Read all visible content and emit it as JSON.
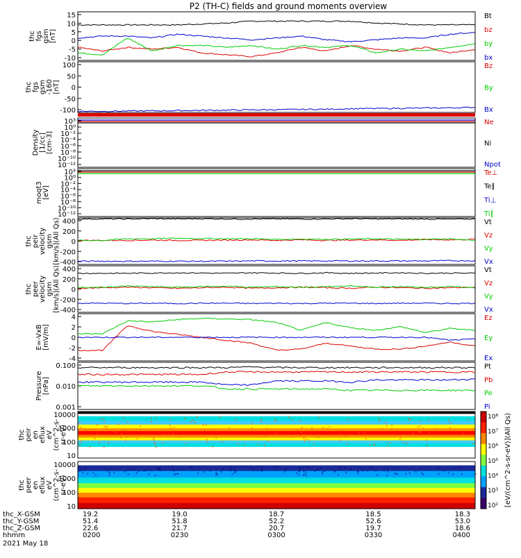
{
  "title": "P2 (TH-C) fields and ground moments overview",
  "colors": {
    "black": "#000000",
    "red": "#dd0000",
    "green": "#00cc00",
    "blue": "#0000cc"
  },
  "chart_data": [
    {
      "type": "line",
      "name": "fgs_gsm",
      "ylabel": [
        "thc",
        "fgs",
        "gsm",
        "[nT]"
      ],
      "yticks": [
        "15",
        "10",
        "5",
        "0",
        "-5",
        "-10"
      ],
      "ylim": [
        -10,
        16
      ],
      "series": [
        {
          "name": "Bt",
          "color": "#000000",
          "values": [
            9,
            9,
            9,
            9,
            9,
            9.5,
            10,
            11,
            11,
            11,
            11,
            11,
            10,
            9.5,
            9,
            9,
            9
          ]
        },
        {
          "name": "bz",
          "color": "#dd0000",
          "values": [
            -3,
            -5,
            -3,
            -4,
            -3,
            -6,
            -7,
            -8,
            -6,
            -3,
            -5,
            -2,
            -4,
            -5,
            -3,
            -6,
            -4
          ]
        },
        {
          "name": "by",
          "color": "#00cc00",
          "values": [
            -6,
            -7,
            2,
            -5,
            -2,
            -2,
            -3,
            -2,
            -4,
            -2,
            -3,
            -2,
            -6,
            -4,
            -5,
            -3,
            -1
          ]
        },
        {
          "name": "bx",
          "color": "#0000cc",
          "values": [
            2,
            3,
            3,
            2,
            4,
            3,
            2,
            1,
            2,
            3,
            1,
            0,
            1,
            2,
            2,
            4,
            5
          ]
        }
      ],
      "legend": [
        "Bt",
        "bz",
        "by",
        "bx"
      ]
    },
    {
      "type": "line",
      "name": "fgs_gsm_alt",
      "ylabel": [
        "thc",
        "fgs",
        "gsm",
        "-160",
        "[nT]"
      ],
      "yticks": [
        "100",
        "50",
        "0",
        "-50",
        "-100"
      ],
      "ylim": [
        -120,
        100
      ],
      "series": [
        {
          "name": "Bx",
          "color": "#0000cc",
          "values": [
            -115,
            -115,
            -114,
            -113,
            -112,
            -111,
            -110,
            -109,
            -108,
            -107,
            -106,
            -104,
            -103,
            -102,
            -101,
            -100,
            -98
          ]
        }
      ],
      "legend": [
        "Bz",
        "By",
        "Bx"
      ]
    },
    {
      "type": "line",
      "name": "density",
      "ylabel": [
        "Density",
        "[1/cc]",
        "[cm-3]"
      ],
      "yticks": [
        "10³",
        "10⁰",
        "10⁻²",
        "10⁻⁴",
        "10⁻⁶",
        "10⁻⁸",
        "10⁻¹⁰",
        "10⁻¹²"
      ],
      "legend": [
        "Ne",
        "Ni",
        "Npot"
      ]
    },
    {
      "type": "line",
      "name": "temperature",
      "ylabel": [
        "moqt3",
        "[eV]"
      ],
      "yticks": [
        "10³",
        "10⁰",
        "10⁻²",
        "10⁻⁴",
        "10⁻⁶",
        "10⁻⁸",
        "10⁻¹⁰",
        "10⁻¹²"
      ],
      "legend": [
        "Te⊥",
        "Te∥",
        "Ti⊥",
        "Ti∥"
      ]
    },
    {
      "type": "line",
      "name": "peir_velocity",
      "ylabel": [
        "thc",
        "peir",
        "velocity",
        "gsm",
        "[km/s](All Qs)"
      ],
      "yticks": [
        "400",
        "200",
        "0",
        "-200",
        "-400"
      ],
      "ylim": [
        -450,
        420
      ],
      "series": [
        {
          "name": "Vt",
          "color": "#000000",
          "values": [
            400,
            400,
            400,
            405,
            400,
            405,
            400,
            400,
            400,
            400,
            400,
            405,
            400,
            400,
            400,
            395,
            400
          ]
        },
        {
          "name": "Vz",
          "color": "#dd0000",
          "values": [
            0,
            0,
            0,
            5,
            0,
            0,
            5,
            10,
            0,
            10,
            0,
            5,
            10,
            0,
            15,
            10,
            20
          ]
        },
        {
          "name": "Vy",
          "color": "#00cc00",
          "values": [
            0,
            0,
            30,
            30,
            40,
            35,
            30,
            30,
            20,
            25,
            20,
            25,
            30,
            20,
            20,
            30,
            0
          ]
        },
        {
          "name": "Vx",
          "color": "#0000cc",
          "values": [
            -390,
            -390,
            -390,
            -390,
            -390,
            -390,
            -390,
            -385,
            -385,
            -385,
            -385,
            -385,
            -385,
            -385,
            -385,
            -380,
            -380
          ]
        }
      ],
      "legend": [
        "Vt",
        "Vz",
        "Vy",
        "Vx"
      ]
    },
    {
      "type": "line",
      "name": "peer_velocity",
      "ylabel": [
        "thc",
        "peer",
        "velocity",
        "gsm",
        "[km/s](All Qs)"
      ],
      "yticks": [
        "400",
        "200",
        "0",
        "-200",
        "-400"
      ],
      "ylim": [
        -450,
        420
      ],
      "series": [
        {
          "name": "Vt",
          "color": "#000000",
          "values": [
            280,
            280,
            280,
            285,
            290,
            285,
            280,
            290,
            285,
            280,
            290,
            280,
            285,
            290,
            280,
            285,
            280
          ]
        },
        {
          "name": "Vz",
          "color": "#dd0000",
          "values": [
            0,
            10,
            20,
            10,
            0,
            10,
            20,
            0,
            10,
            20,
            10,
            0,
            20,
            10,
            0,
            10,
            20
          ]
        },
        {
          "name": "Vy",
          "color": "#00cc00",
          "values": [
            10,
            20,
            40,
            30,
            20,
            30,
            40,
            20,
            30,
            20,
            30,
            40,
            20,
            30,
            20,
            30,
            10
          ]
        },
        {
          "name": "Vx",
          "color": "#0000cc",
          "values": [
            -280,
            -280,
            -285,
            -280,
            -285,
            -280,
            -280,
            -285,
            -280,
            -285,
            -280,
            -280,
            -285,
            -280,
            -280,
            -285,
            -280
          ]
        }
      ],
      "legend": [
        "Vt",
        "Vz",
        "Vy",
        "Vx"
      ]
    },
    {
      "type": "line",
      "name": "efield",
      "ylabel": [
        "E=-VxB",
        "[mV/m]"
      ],
      "yticks": [
        "4",
        "2",
        "0",
        "-2",
        "-4"
      ],
      "ylim": [
        -4,
        4
      ],
      "series": [
        {
          "name": "Ez",
          "color": "#dd0000",
          "values": [
            -2.2,
            -2.2,
            2,
            1,
            0.5,
            0,
            -0.5,
            -1,
            -2.2,
            -2,
            -1,
            -1.5,
            -2,
            -2,
            -1.5,
            -0.8,
            -1.5
          ]
        },
        {
          "name": "Ey",
          "color": "#00cc00",
          "values": [
            0.6,
            0.6,
            2.8,
            2.6,
            3,
            3.2,
            3.1,
            3,
            2.5,
            1.2,
            2.5,
            1.6,
            1.2,
            1.8,
            0.8,
            1.5,
            1.2
          ]
        },
        {
          "name": "Ex",
          "color": "#0000cc",
          "values": [
            0,
            0,
            0,
            0,
            0,
            0,
            0,
            0,
            0,
            0,
            0,
            0,
            0,
            0,
            0,
            -0.5,
            -0.3
          ]
        }
      ],
      "legend": [
        "Ez",
        "Ey",
        "Ex"
      ]
    },
    {
      "type": "line",
      "name": "pressure",
      "ylabel": [
        "Pressure",
        "[nPa]"
      ],
      "yticks": [
        "0.100",
        "0.010",
        "0.001"
      ],
      "log": true,
      "ylim": [
        0.001,
        0.12
      ],
      "series": [
        {
          "name": "Pt",
          "color": "#000000",
          "values": [
            0.07,
            0.07,
            0.07,
            0.07,
            0.07,
            0.07,
            0.07,
            0.075,
            0.07,
            0.07,
            0.07,
            0.07,
            0.07,
            0.07,
            0.07,
            0.07,
            0.07
          ]
        },
        {
          "name": "Pb",
          "color": "#dd0000",
          "values": [
            0.035,
            0.035,
            0.035,
            0.035,
            0.035,
            0.035,
            0.045,
            0.045,
            0.045,
            0.045,
            0.045,
            0.045,
            0.045,
            0.045,
            0.045,
            0.045,
            0.045
          ]
        },
        {
          "name": "Pe",
          "color": "#00cc00",
          "values": [
            0.011,
            0.011,
            0.011,
            0.011,
            0.011,
            0.011,
            0.008,
            0.008,
            0.008,
            0.008,
            0.008,
            0.007,
            0.007,
            0.007,
            0.007,
            0.007,
            0.007
          ]
        },
        {
          "name": "Pi",
          "color": "#0000cc",
          "values": [
            0.016,
            0.016,
            0.016,
            0.016,
            0.016,
            0.016,
            0.012,
            0.012,
            0.018,
            0.018,
            0.018,
            0.016,
            0.02,
            0.02,
            0.02,
            0.02,
            0.022
          ]
        }
      ],
      "legend": [
        "Pt",
        "Pb",
        "Pe",
        "Pi"
      ]
    },
    {
      "type": "heatmap",
      "name": "peir_spectrogram",
      "ylabel": [
        "thc",
        "peir",
        "en",
        "eflux",
        "eV",
        "(cm^2-s-",
        "sr-eV)"
      ],
      "yticks": [
        "10000",
        "1000",
        "100",
        "10"
      ]
    },
    {
      "type": "heatmap",
      "name": "peer_spectrogram",
      "ylabel": [
        "thc",
        "peer",
        "en",
        "eflux",
        "eV",
        "(cm^2-s-",
        "sr-eV)"
      ],
      "yticks": [
        "10000",
        "1000",
        "100",
        "10"
      ]
    }
  ],
  "colorbar": {
    "label": "[eV/(cm^2-s-sr-eV)](All Qs)",
    "ticks": [
      "10⁸",
      "10⁷",
      "10⁶",
      "10⁵",
      "10⁴",
      "10³",
      "10²"
    ]
  },
  "xaxis": {
    "rows": [
      {
        "label": "thc_X-GSM",
        "values": [
          "19.2",
          "19.0",
          "18.7",
          "18.5",
          "18.3"
        ]
      },
      {
        "label": "thc_Y-GSM",
        "values": [
          "51.4",
          "51.8",
          "52.2",
          "52.6",
          "53.0"
        ]
      },
      {
        "label": "thc_Z-GSM",
        "values": [
          "22.6",
          "21.7",
          "20.7",
          "19.7",
          "18.6"
        ]
      },
      {
        "label": "hhmm",
        "values": [
          "0200",
          "0230",
          "0300",
          "0330",
          "0400"
        ]
      }
    ],
    "date": "2021 May 18"
  }
}
